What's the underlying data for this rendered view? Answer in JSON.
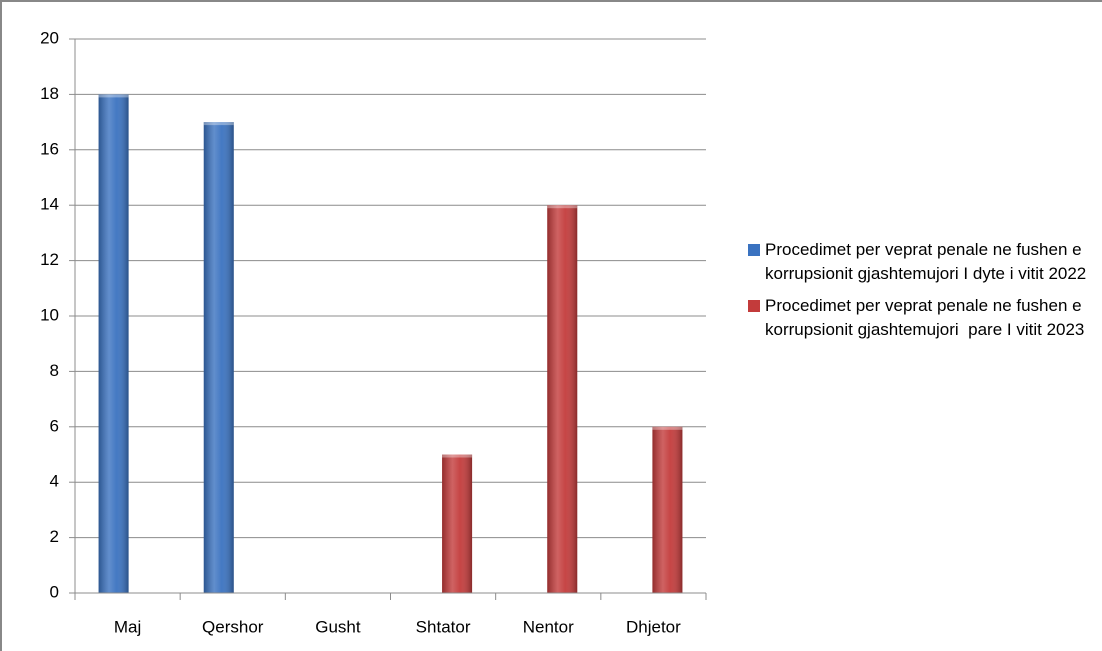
{
  "chart_data": {
    "type": "bar",
    "categories": [
      "Maj",
      "Qershor",
      "Gusht",
      "Shtator",
      "Nentor",
      "Dhjetor"
    ],
    "series": [
      {
        "name": "Procedimet per veprat penale ne fushen e korrupsionit gjashtemujori I dyte i vitit 2022",
        "color": "#3a72c0",
        "values": [
          18,
          17,
          null,
          null,
          null,
          null
        ]
      },
      {
        "name": "Procedimet per veprat penale ne fushen e korrupsionit gjashtemujori  pare I vitit 2023",
        "color": "#c33b3b",
        "values": [
          null,
          null,
          null,
          5,
          14,
          6
        ]
      }
    ],
    "ylim": [
      0,
      20
    ],
    "yticks": [
      0,
      2,
      4,
      6,
      8,
      10,
      12,
      14,
      16,
      18,
      20
    ],
    "grid": true,
    "legend": "right"
  }
}
